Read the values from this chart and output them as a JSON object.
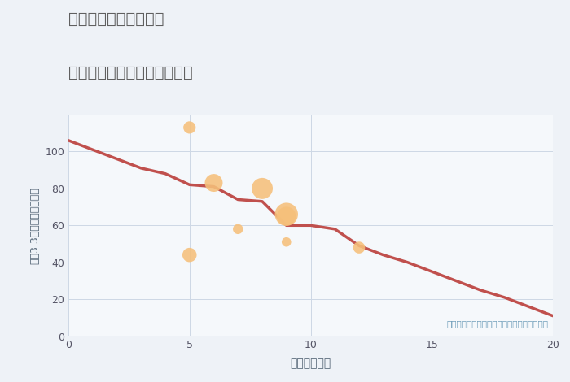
{
  "title_line1": "福岡県太宰府市五条の",
  "title_line2": "駅距離別中古マンション価格",
  "xlabel": "駅距離（分）",
  "ylabel": "坪（3.3㎡）単価（万円）",
  "fig_background": "#eef2f7",
  "plot_background": "#f5f8fb",
  "line_color": "#c0504d",
  "line_x": [
    0,
    1,
    2,
    3,
    4,
    5,
    6,
    7,
    8,
    9,
    10,
    11,
    12,
    13,
    14,
    15,
    16,
    17,
    18,
    19,
    20
  ],
  "line_y": [
    106,
    101,
    96,
    91,
    88,
    82,
    81,
    74,
    73,
    60,
    60,
    58,
    49,
    44,
    40,
    35,
    30,
    25,
    21,
    16,
    11
  ],
  "scatter_x": [
    5,
    5,
    6,
    7,
    8,
    9,
    9,
    9,
    12
  ],
  "scatter_y": [
    113,
    44,
    83,
    58,
    80,
    66,
    65,
    51,
    48
  ],
  "scatter_sizes": [
    120,
    160,
    250,
    80,
    350,
    420,
    280,
    70,
    110
  ],
  "scatter_color": "#f5c07a",
  "scatter_alpha": 0.88,
  "annotation": "円の大きさは、取引のあった物件面積を示す",
  "annotation_color": "#6b9bb8",
  "xlim": [
    0,
    20
  ],
  "ylim": [
    0,
    120
  ],
  "xticks": [
    0,
    5,
    10,
    15,
    20
  ],
  "yticks": [
    0,
    20,
    40,
    60,
    80,
    100
  ],
  "grid_color": "#cdd8e5",
  "title_color": "#606060",
  "tick_color": "#555566",
  "label_color": "#556677"
}
